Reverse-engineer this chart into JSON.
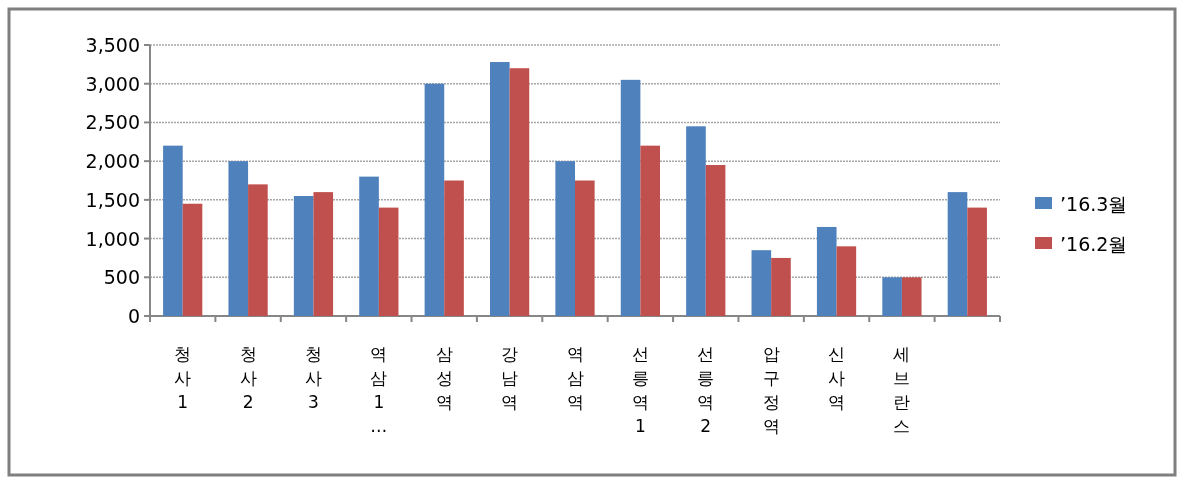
{
  "chart_data": {
    "type": "bar",
    "categories": [
      "청사1",
      "청사2",
      "청사3",
      "역삼1…",
      "삼성역",
      "강남역",
      "역삼역",
      "선릉역1",
      "선릉역2",
      "압구정역",
      "신사역",
      "세브란스",
      null
    ],
    "series": [
      {
        "name": "’16.3월",
        "color": "#4f81bd",
        "values": [
          2200,
          2000,
          1550,
          1800,
          3000,
          3280,
          2000,
          3050,
          2450,
          850,
          1150,
          500,
          1600
        ]
      },
      {
        "name": "’16.2월",
        "color": "#c0504d",
        "values": [
          1450,
          1700,
          1600,
          1400,
          1750,
          3200,
          1750,
          2200,
          1950,
          750,
          900,
          500,
          1400
        ]
      }
    ],
    "ylim": [
      0,
      3500
    ],
    "yticks": [
      0,
      500,
      {
        "value": 1000,
        "label": "1,000"
      },
      {
        "value": 1500,
        "label": "1,500"
      },
      {
        "value": 2000,
        "label": "2,000"
      },
      {
        "value": 2500,
        "label": "2,500"
      },
      {
        "value": 3000,
        "label": "3,000"
      },
      {
        "value": 3500,
        "label": "3,500"
      }
    ],
    "grid": "y",
    "legend": "right"
  }
}
